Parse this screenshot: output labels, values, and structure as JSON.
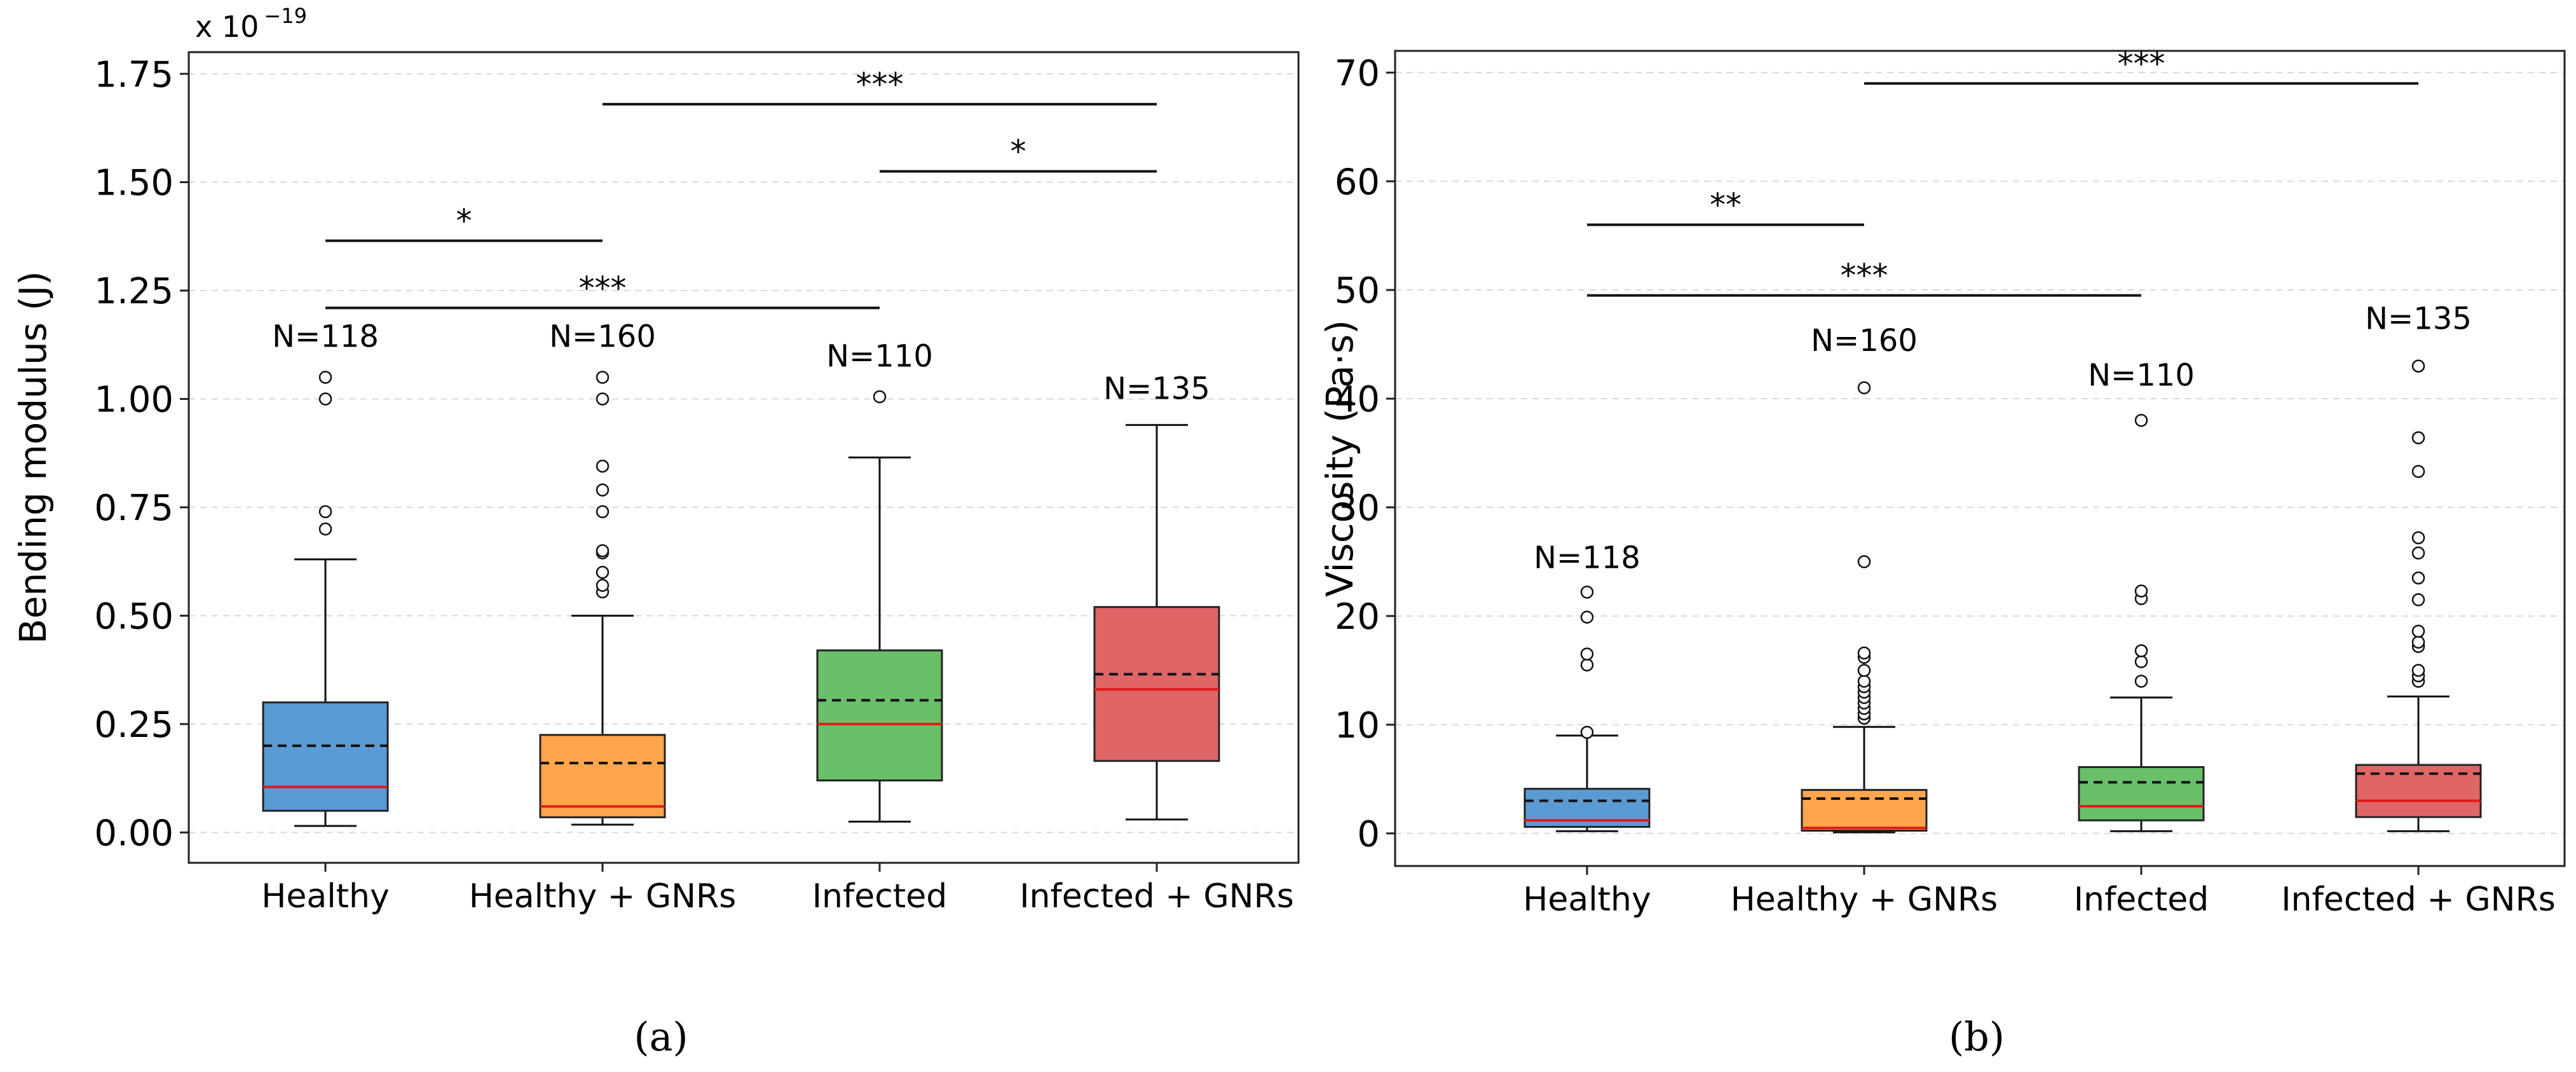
{
  "chart_data": [
    {
      "panel_label": "(a)",
      "type": "box",
      "categories": [
        "Healthy",
        "Healthy + GNRs",
        "Infected",
        "Infected + GNRs"
      ],
      "ylabel": "Bending modulus (J)",
      "y_multiplier": "x 10",
      "y_exponent": "−19",
      "ylim": [
        -0.07,
        1.8
      ],
      "yticks": [
        0,
        0.25,
        0.5,
        0.75,
        1.0,
        1.25,
        1.5,
        1.75
      ],
      "ytick_labels": [
        "0.00",
        "0.25",
        "0.50",
        "0.75",
        "1.00",
        "1.25",
        "1.50",
        "1.75"
      ],
      "grid": "y-dashed",
      "boxes": [
        {
          "category": "Healthy",
          "color": "#5b9bd5",
          "whisker_low": 0.015,
          "q1": 0.05,
          "median": 0.105,
          "mean": 0.2,
          "q3": 0.3,
          "whisker_high": 0.63,
          "outliers": [
            0.7,
            0.74,
            1.0,
            1.05
          ],
          "n_label": "N=118",
          "n_y": 1.12
        },
        {
          "category": "Healthy + GNRs",
          "color": "#ffa64d",
          "whisker_low": 0.018,
          "q1": 0.035,
          "median": 0.06,
          "mean": 0.16,
          "q3": 0.225,
          "whisker_high": 0.5,
          "outliers": [
            0.555,
            0.57,
            0.6,
            0.645,
            0.65,
            0.74,
            0.79,
            0.845,
            1.0,
            1.05
          ],
          "n_label": "N=160",
          "n_y": 1.12
        },
        {
          "category": "Infected",
          "color": "#6abf69",
          "whisker_low": 0.025,
          "q1": 0.12,
          "median": 0.25,
          "mean": 0.305,
          "q3": 0.42,
          "whisker_high": 0.865,
          "outliers": [
            1.005
          ],
          "n_label": "N=110",
          "n_y": 1.075
        },
        {
          "category": "Infected + GNRs",
          "color": "#e06666",
          "whisker_low": 0.03,
          "q1": 0.165,
          "median": 0.33,
          "mean": 0.365,
          "q3": 0.52,
          "whisker_high": 0.94,
          "outliers": [],
          "n_label": "N=135",
          "n_y": 1.0
        }
      ],
      "significance": [
        {
          "from": 0,
          "to": 1,
          "y": 1.365,
          "label": "*"
        },
        {
          "from": 0,
          "to": 2,
          "y": 1.21,
          "label": "***"
        },
        {
          "from": 1,
          "to": 3,
          "y": 1.68,
          "label": "***"
        },
        {
          "from": 2,
          "to": 3,
          "y": 1.525,
          "label": "*"
        }
      ]
    },
    {
      "panel_label": "(b)",
      "type": "box",
      "categories": [
        "Healthy",
        "Healthy + GNRs",
        "Infected",
        "Infected + GNRs"
      ],
      "ylabel": "Viscosity (Pa·s)",
      "ylim": [
        -3,
        72
      ],
      "yticks": [
        0,
        10,
        20,
        30,
        40,
        50,
        60,
        70
      ],
      "ytick_labels": [
        "0",
        "10",
        "20",
        "30",
        "40",
        "50",
        "60",
        "70"
      ],
      "grid": "y-dashed",
      "boxes": [
        {
          "category": "Healthy",
          "color": "#5b9bd5",
          "whisker_low": 0.2,
          "q1": 0.6,
          "median": 1.2,
          "mean": 3.0,
          "q3": 4.1,
          "whisker_high": 9.0,
          "outliers": [
            9.3,
            15.5,
            16.5,
            19.9,
            22.2
          ],
          "n_label": "N=118",
          "n_y": 24.4
        },
        {
          "category": "Healthy + GNRs",
          "color": "#ffa64d",
          "whisker_low": 0.1,
          "q1": 0.25,
          "median": 0.5,
          "mean": 3.2,
          "q3": 4.0,
          "whisker_high": 9.8,
          "outliers": [
            10.6,
            11.0,
            11.5,
            12.0,
            12.5,
            13.0,
            13.5,
            14.0,
            15.0,
            16.2,
            16.6,
            25.0,
            41.0
          ],
          "n_label": "N=160",
          "n_y": 44.4
        },
        {
          "category": "Infected",
          "color": "#6abf69",
          "whisker_low": 0.2,
          "q1": 1.2,
          "median": 2.5,
          "mean": 4.7,
          "q3": 6.1,
          "whisker_high": 12.5,
          "outliers": [
            14.0,
            15.8,
            16.8,
            21.6,
            22.3,
            38.0
          ],
          "n_label": "N=110",
          "n_y": 41.2
        },
        {
          "category": "Infected + GNRs",
          "color": "#e06666",
          "whisker_low": 0.2,
          "q1": 1.5,
          "median": 3.0,
          "mean": 5.5,
          "q3": 6.3,
          "whisker_high": 12.6,
          "outliers": [
            14.0,
            14.5,
            15.0,
            17.2,
            17.6,
            18.6,
            21.5,
            23.5,
            25.8,
            27.2,
            33.3,
            36.4,
            43.0
          ],
          "n_label": "N=135",
          "n_y": 46.4
        }
      ],
      "significance": [
        {
          "from": 0,
          "to": 1,
          "y": 56,
          "label": "**"
        },
        {
          "from": 0,
          "to": 2,
          "y": 49.5,
          "label": "***"
        },
        {
          "from": 1,
          "to": 3,
          "y": 69,
          "label": "***"
        }
      ]
    }
  ]
}
